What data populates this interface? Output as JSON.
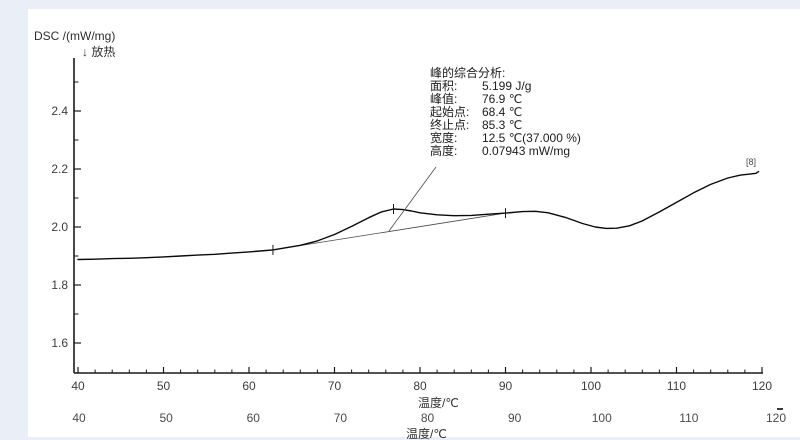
{
  "window": {
    "outer_background": "#e9eef7",
    "panel_background": "#ffffff",
    "curve_color": "#0a0a0a",
    "axis_color": "#1a1a1a"
  },
  "y_axis": {
    "title": "DSC /(mW/mg)",
    "direction_note": "↓ 放热",
    "ticks": [
      "2.4",
      "2.2",
      "2.0",
      "1.8",
      "1.6"
    ]
  },
  "x_axis": {
    "title": "温度/℃",
    "ticks": [
      "40",
      "50",
      "60",
      "70",
      "80",
      "90",
      "100",
      "110",
      "120"
    ]
  },
  "secondary_x_axis": {
    "title": "温度/℃",
    "ticks": [
      "40",
      "50",
      "60",
      "70",
      "80",
      "90",
      "100",
      "110",
      "120"
    ]
  },
  "curve_label": "[8]",
  "annotation": {
    "title": "峰的综合分析:",
    "rows": [
      {
        "label": "面积:",
        "value": "5.199 J/g"
      },
      {
        "label": "峰值:",
        "value": "76.9 ℃"
      },
      {
        "label": "起始点:",
        "value": "68.4 ℃"
      },
      {
        "label": "终止点:",
        "value": "85.3 ℃"
      },
      {
        "label": "宽度:",
        "value": "12.5 ℃(37.000 %)"
      },
      {
        "label": "高度:",
        "value": "0.07943 mW/mg"
      }
    ]
  },
  "chart_data": {
    "type": "line",
    "title": "",
    "xlabel": "温度/℃",
    "ylabel": "DSC /(mW/mg)",
    "exothermic_direction": "down",
    "xlim": [
      40,
      120
    ],
    "ylim": [
      1.5,
      2.58
    ],
    "x_major_ticks": [
      40,
      50,
      60,
      70,
      80,
      90,
      100,
      110,
      120
    ],
    "x_minor_step": 2,
    "y_major_ticks": [
      2.4,
      2.2,
      2.0,
      1.8,
      1.6
    ],
    "y_minor_ticks": [
      2.5,
      2.3,
      2.1,
      1.9,
      1.7
    ],
    "grid": false,
    "legend_position": "none",
    "series": [
      {
        "name": "[8]",
        "points": [
          [
            40,
            1.888
          ],
          [
            42,
            1.889
          ],
          [
            44,
            1.891
          ],
          [
            46,
            1.892
          ],
          [
            48,
            1.894
          ],
          [
            50,
            1.897
          ],
          [
            52,
            1.9
          ],
          [
            54,
            1.903
          ],
          [
            56,
            1.906
          ],
          [
            58,
            1.91
          ],
          [
            60,
            1.914
          ],
          [
            62,
            1.919
          ],
          [
            62.8,
            1.921
          ],
          [
            64,
            1.927
          ],
          [
            66,
            1.937
          ],
          [
            68,
            1.952
          ],
          [
            70,
            1.974
          ],
          [
            72,
            2.002
          ],
          [
            74,
            2.032
          ],
          [
            75.5,
            2.052
          ],
          [
            76.9,
            2.062
          ],
          [
            78,
            2.06
          ],
          [
            79,
            2.055
          ],
          [
            80,
            2.049
          ],
          [
            82,
            2.042
          ],
          [
            84,
            2.039
          ],
          [
            86,
            2.04
          ],
          [
            88,
            2.044
          ],
          [
            90,
            2.048
          ],
          [
            92,
            2.053
          ],
          [
            93.5,
            2.054
          ],
          [
            95,
            2.049
          ],
          [
            97,
            2.033
          ],
          [
            99,
            2.012
          ],
          [
            100.5,
            2.0
          ],
          [
            101.8,
            1.995
          ],
          [
            103,
            1.996
          ],
          [
            104.5,
            2.004
          ],
          [
            106,
            2.021
          ],
          [
            108,
            2.052
          ],
          [
            110,
            2.085
          ],
          [
            112,
            2.118
          ],
          [
            114,
            2.147
          ],
          [
            116,
            2.169
          ],
          [
            117.5,
            2.179
          ],
          [
            118.7,
            2.183
          ],
          [
            119.3,
            2.185
          ],
          [
            119.6,
            2.191
          ]
        ]
      }
    ],
    "integration_baseline": [
      [
        62.8,
        1.921
      ],
      [
        90.0,
        2.048
      ]
    ],
    "peak_markers": [
      [
        62.8,
        1.921
      ],
      [
        76.9,
        2.062
      ],
      [
        90.0,
        2.048
      ]
    ],
    "peak_analysis": {
      "area_J_per_g": 5.199,
      "peak_C": 76.9,
      "onset_C": 68.4,
      "end_C": 85.3,
      "width_C": 12.5,
      "width_pct": 37.0,
      "height_mW_per_mg": 0.07943
    }
  }
}
